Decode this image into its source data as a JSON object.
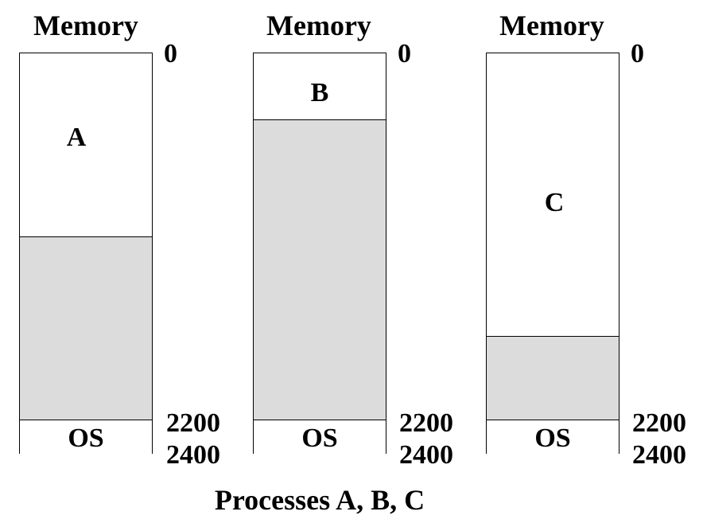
{
  "memory_columns": [
    {
      "title": "Memory",
      "process_label": "A",
      "addr_top": "0",
      "addr_os_start": "2200",
      "addr_os_end": "2400",
      "os_label": "OS",
      "process_fraction": 0.5
    },
    {
      "title": "Memory",
      "process_label": "B",
      "addr_top": "0",
      "addr_os_start": "2200",
      "addr_os_end": "2400",
      "os_label": "OS",
      "process_fraction": 0.18
    },
    {
      "title": "Memory",
      "process_label": "C",
      "addr_top": "0",
      "addr_os_start": "2200",
      "addr_os_end": "2400",
      "os_label": "OS",
      "process_fraction": 0.77
    }
  ],
  "caption": "Processes A, B, C",
  "colors": {
    "free_memory": "#dcdcdc",
    "allocated": "#ffffff",
    "border": "#000000"
  }
}
